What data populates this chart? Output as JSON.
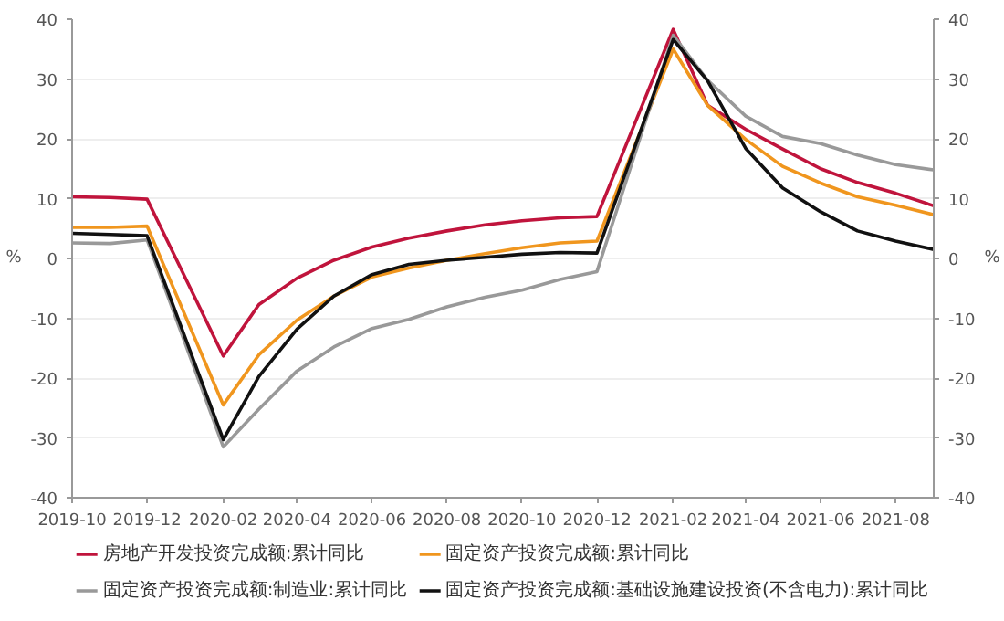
{
  "chart_data": {
    "type": "line",
    "ylabel": "%",
    "y2label": "%",
    "x": [
      "2019-10",
      "2019-11",
      "2019-12",
      "2020-02",
      "2020-03",
      "2020-04",
      "2020-05",
      "2020-06",
      "2020-07",
      "2020-08",
      "2020-09",
      "2020-10",
      "2020-11",
      "2020-12",
      "2021-02",
      "2021-03",
      "2021-04",
      "2021-05",
      "2021-06",
      "2021-07",
      "2021-08",
      "2021-09"
    ],
    "xlim": [
      "2019-10",
      "2021-09"
    ],
    "xticks": [
      {
        "value": "2019-10",
        "label": "2019-10"
      },
      {
        "value": "2019-12",
        "label": "2019-12"
      },
      {
        "value": "2020-02",
        "label": "2020-02"
      },
      {
        "value": "2020-04",
        "label": "2020-04"
      },
      {
        "value": "2020-06",
        "label": "2020-06"
      },
      {
        "value": "2020-08",
        "label": "2020-08"
      },
      {
        "value": "2020-10",
        "label": "2020-10"
      },
      {
        "value": "2020-12",
        "label": "2020-12"
      },
      {
        "value": "2021-02",
        "label": "2021-02"
      },
      {
        "value": "2021-04",
        "label": "2021-04"
      },
      {
        "value": "2021-06",
        "label": "2021-06"
      },
      {
        "value": "2021-08",
        "label": "2021-08"
      }
    ],
    "ylim": [
      -40,
      40
    ],
    "yticks": [
      -40,
      -30,
      -20,
      -10,
      0,
      10,
      20,
      30,
      40
    ],
    "y2lim": [
      -40,
      40
    ],
    "y2ticks": [
      -40,
      -30,
      -20,
      -10,
      0,
      10,
      20,
      30,
      40
    ],
    "grid": "y",
    "legend": "bottom",
    "line_style": "solid",
    "marker": "none",
    "series": [
      {
        "name": "房地产开发投资完成额:累计同比",
        "color": "#c0143c",
        "values": [
          10.3,
          10.2,
          9.9,
          -16.3,
          -7.7,
          -3.3,
          -0.3,
          1.9,
          3.4,
          4.6,
          5.6,
          6.3,
          6.8,
          7.0,
          38.3,
          25.6,
          21.6,
          18.3,
          15.0,
          12.7,
          10.9,
          8.8
        ]
      },
      {
        "name": "固定资产投资完成额:累计同比",
        "color": "#f0961e",
        "values": [
          5.2,
          5.2,
          5.4,
          -24.5,
          -16.1,
          -10.3,
          -6.3,
          -3.1,
          -1.6,
          -0.3,
          0.8,
          1.8,
          2.6,
          2.9,
          35.0,
          25.6,
          19.9,
          15.4,
          12.6,
          10.3,
          8.9,
          7.3
        ]
      },
      {
        "name": "固定资产投资完成额:制造业:累计同比",
        "color": "#999999",
        "values": [
          2.6,
          2.5,
          3.1,
          -31.5,
          -25.2,
          -18.8,
          -14.8,
          -11.7,
          -10.2,
          -8.1,
          -6.5,
          -5.3,
          -3.5,
          -2.2,
          37.3,
          29.8,
          23.8,
          20.4,
          19.2,
          17.3,
          15.7,
          14.8
        ]
      },
      {
        "name": "固定资产投资完成额:基础设施建设投资(不含电力):累计同比",
        "color": "#111111",
        "values": [
          4.2,
          4.0,
          3.8,
          -30.3,
          -19.7,
          -11.8,
          -6.3,
          -2.7,
          -1.0,
          -0.3,
          0.2,
          0.7,
          1.0,
          0.9,
          36.6,
          29.7,
          18.4,
          11.8,
          7.8,
          4.6,
          2.9,
          1.5
        ]
      }
    ]
  }
}
